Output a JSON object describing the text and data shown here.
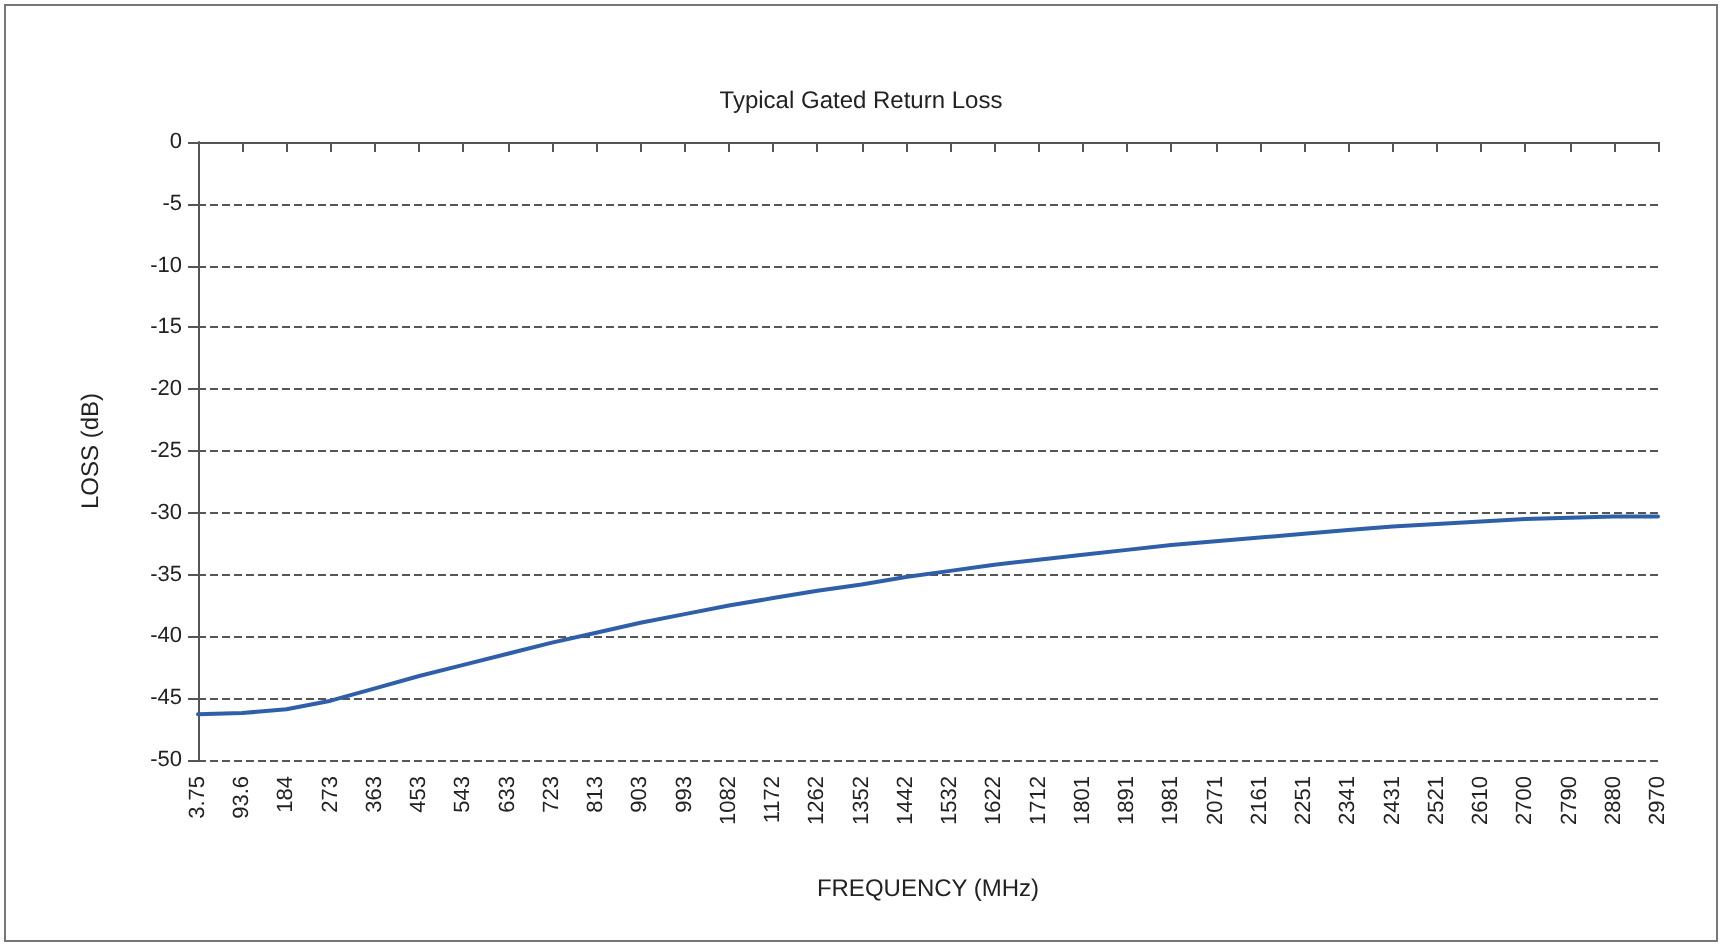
{
  "chart_data": {
    "type": "line",
    "title": "Typical Gated Return Loss",
    "xlabel": "FREQUENCY (MHz)",
    "ylabel": "LOSS (dB)",
    "categories": [
      "3.75",
      "93.6",
      "184",
      "273",
      "363",
      "453",
      "543",
      "633",
      "723",
      "813",
      "903",
      "993",
      "1082",
      "1172",
      "1262",
      "1352",
      "1442",
      "1532",
      "1622",
      "1712",
      "1801",
      "1891",
      "1981",
      "2071",
      "2161",
      "2251",
      "2341",
      "2431",
      "2521",
      "2610",
      "2700",
      "2790",
      "2880",
      "2970"
    ],
    "series": [
      {
        "color": "#2f5fa8",
        "values": [
          -46.3,
          -46.2,
          -45.9,
          -45.2,
          -44.2,
          -43.2,
          -42.3,
          -41.4,
          -40.5,
          -39.7,
          -38.9,
          -38.2,
          -37.5,
          -36.9,
          -36.3,
          -35.8,
          -35.2,
          -34.7,
          -34.2,
          -33.8,
          -33.4,
          -33.0,
          -32.6,
          -32.3,
          -32.0,
          -31.7,
          -31.4,
          -31.1,
          -30.9,
          -30.7,
          -30.5,
          -30.4,
          -30.3,
          -30.3
        ]
      }
    ],
    "ylim": [
      -50,
      0
    ],
    "yticks": [
      -50,
      -45,
      -40,
      -35,
      -30,
      -25,
      -20,
      -15,
      -10,
      -5,
      0
    ],
    "grid": "y",
    "line_style": "solid",
    "marker": "none"
  }
}
